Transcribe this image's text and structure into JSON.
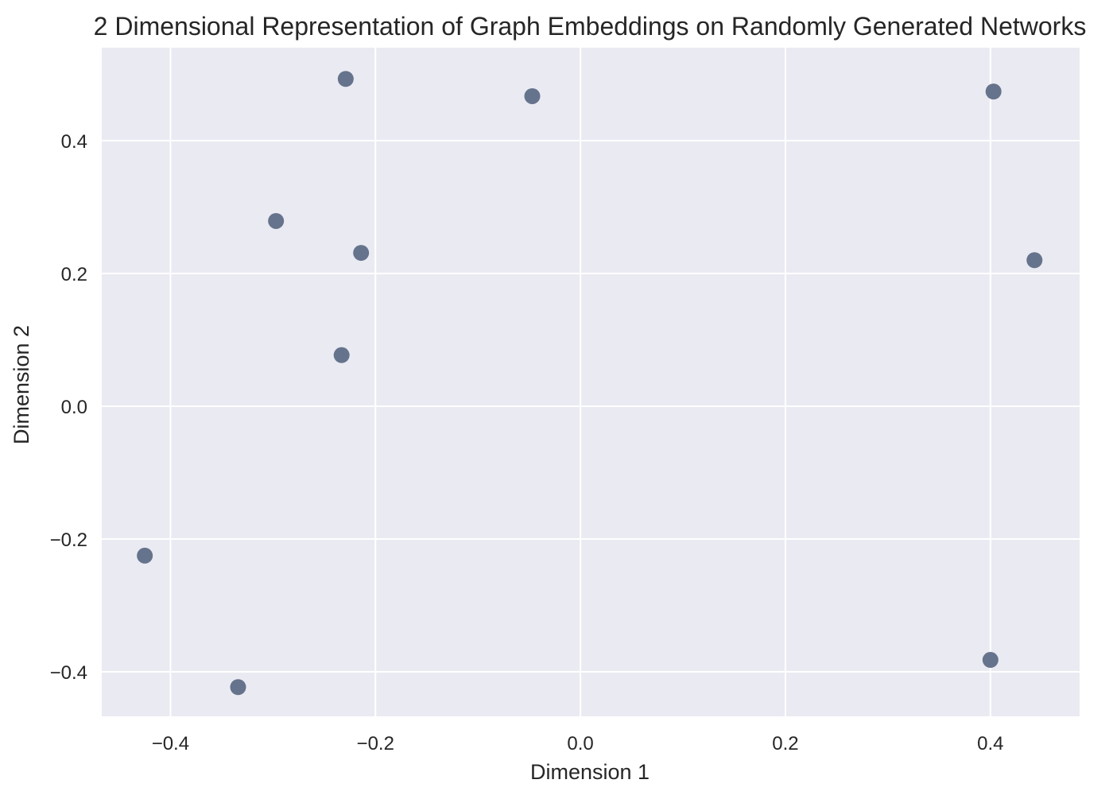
{
  "chart_data": {
    "type": "scatter",
    "title": "2 Dimensional Representation of Graph Embeddings on Randomly Generated Networks",
    "xlabel": "Dimension 1",
    "ylabel": "Dimension 2",
    "xlim": [
      -0.467,
      0.487
    ],
    "ylim": [
      -0.467,
      0.54
    ],
    "xticks": [
      -0.4,
      -0.2,
      0.0,
      0.2,
      0.4
    ],
    "xtick_labels": [
      "−0.4",
      "−0.2",
      "0.0",
      "0.2",
      "0.4"
    ],
    "yticks": [
      -0.4,
      -0.2,
      0.0,
      0.2,
      0.4
    ],
    "ytick_labels": [
      "−0.4",
      "−0.2",
      "0.0",
      "0.2",
      "0.4"
    ],
    "grid": true,
    "colors": {
      "plot_background": "#eaeaf2",
      "grid": "#ffffff",
      "marker": "#66738c",
      "text": "#262626"
    },
    "series": [
      {
        "x": [
          -0.229,
          -0.047,
          0.403,
          -0.297,
          -0.214,
          0.443,
          -0.233,
          -0.425,
          -0.334,
          0.4
        ],
        "y": [
          0.493,
          0.467,
          0.474,
          0.279,
          0.231,
          0.22,
          0.077,
          -0.225,
          -0.423,
          -0.382
        ]
      }
    ]
  }
}
